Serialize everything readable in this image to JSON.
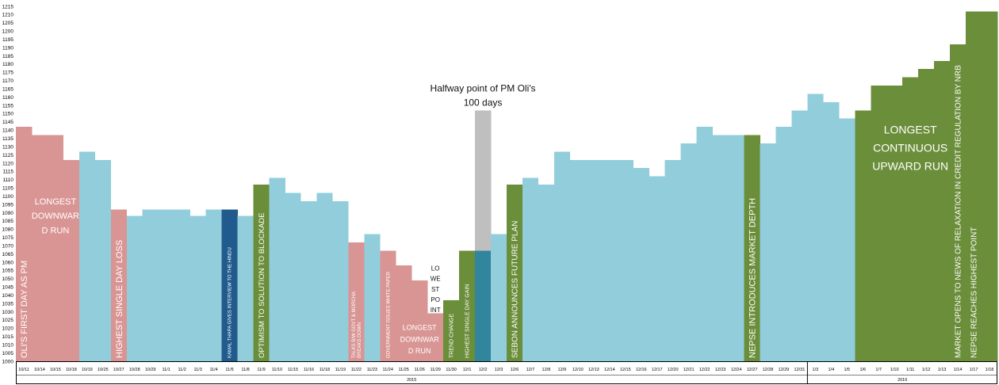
{
  "chart_data": {
    "type": "bar",
    "ylim": [
      1000,
      1215
    ],
    "y_ticks": [
      1000,
      1005,
      1010,
      1015,
      1020,
      1025,
      1030,
      1035,
      1040,
      1045,
      1050,
      1055,
      1060,
      1065,
      1070,
      1075,
      1080,
      1085,
      1090,
      1095,
      1100,
      1105,
      1110,
      1115,
      1120,
      1125,
      1130,
      1135,
      1140,
      1145,
      1150,
      1155,
      1160,
      1165,
      1170,
      1175,
      1180,
      1185,
      1190,
      1195,
      1200,
      1205,
      1210,
      1215
    ],
    "grid": false,
    "legend": "none",
    "categories": [
      "10/11",
      "10/14",
      "10/15",
      "10/18",
      "10/19",
      "10/25",
      "10/27",
      "10/28",
      "10/29",
      "11/1",
      "11/2",
      "11/3",
      "11/4",
      "11/5",
      "11/8",
      "11/9",
      "11/10",
      "11/15",
      "11/16",
      "11/18",
      "11/19",
      "11/22",
      "11/23",
      "11/24",
      "11/25",
      "11/26",
      "11/29",
      "11/30",
      "12/1",
      "12/2",
      "12/3",
      "12/6",
      "12/7",
      "12/8",
      "12/9",
      "12/10",
      "12/13",
      "12/14",
      "12/15",
      "12/16",
      "12/17",
      "12/20",
      "12/21",
      "12/22",
      "12/23",
      "12/24",
      "12/27",
      "12/28",
      "12/29",
      "12/31",
      "1/3",
      "1/4",
      "1/5",
      "1/6",
      "1/7",
      "1/10",
      "1/11",
      "1/12",
      "1/13",
      "1/14",
      "1/17",
      "1/18"
    ],
    "values": [
      1142,
      1137,
      1137,
      1122,
      1127,
      1122,
      1092,
      1088,
      1092,
      1092,
      1092,
      1088,
      1092,
      1092,
      1088,
      1107,
      1111,
      1102,
      1097,
      1102,
      1097,
      1072,
      1077,
      1067,
      1058,
      1049,
      1029,
      1037,
      1067,
      1067,
      1077,
      1107,
      1111,
      1107,
      1127,
      1122,
      1122,
      1122,
      1122,
      1117,
      1112,
      1122,
      1132,
      1142,
      1137,
      1137,
      1137,
      1132,
      1142,
      1152,
      1162,
      1157,
      1147,
      1152,
      1167,
      1167,
      1172,
      1177,
      1182,
      1192,
      1212,
      1212
    ],
    "halfway_bar": {
      "category": "12/2",
      "value": 1152
    },
    "bar_colors": [
      "#d99594",
      "#d99594",
      "#d99594",
      "#d99594",
      "#92cddc",
      "#92cddc",
      "#d99594",
      "#92cddc",
      "#92cddc",
      "#92cddc",
      "#92cddc",
      "#92cddc",
      "#92cddc",
      "#215a8c",
      "#92cddc",
      "#6b8e3a",
      "#92cddc",
      "#92cddc",
      "#92cddc",
      "#92cddc",
      "#92cddc",
      "#d99594",
      "#92cddc",
      "#d99594",
      "#d99594",
      "#d99594",
      "#d99594",
      "#6b8e3a",
      "#6b8e3a",
      "#31859c",
      "#92cddc",
      "#6b8e3a",
      "#92cddc",
      "#92cddc",
      "#92cddc",
      "#92cddc",
      "#92cddc",
      "#92cddc",
      "#92cddc",
      "#92cddc",
      "#92cddc",
      "#92cddc",
      "#92cddc",
      "#92cddc",
      "#92cddc",
      "#92cddc",
      "#6b8e3a",
      "#92cddc",
      "#92cddc",
      "#92cddc",
      "#92cddc",
      "#92cddc",
      "#92cddc",
      "#6b8e3a",
      "#6b8e3a",
      "#6b8e3a",
      "#6b8e3a",
      "#6b8e3a",
      "#6b8e3a",
      "#6b8e3a",
      "#6b8e3a",
      "#6b8e3a"
    ],
    "halfway_color": "#bfbfbf",
    "years": [
      {
        "label": "2015",
        "from": 0,
        "to": 49
      },
      {
        "label": "2016",
        "from": 50,
        "to": 61
      }
    ],
    "annotations": [
      {
        "text": "OLI'S FIRST DAY AS PM",
        "bar": 0,
        "rotate": true,
        "size": 11
      },
      {
        "text": "LONGEST DOWNWARD RUN",
        "lines": [
          "LONGEST",
          "DOWNWAR",
          "D RUN"
        ],
        "bar": 2,
        "value": 1095,
        "size": 11
      },
      {
        "text": "HIGHEST SINGLE DAY LOSS",
        "bar": 6,
        "rotate": true,
        "size": 11
      },
      {
        "text": "KAMAL THAPA GIVES INTERVIEW TO THE HINDU",
        "bar": 13,
        "rotate": true,
        "size": 6
      },
      {
        "text": "OPTIMISM TO SOLUTION TO BLOCKADE",
        "bar": 15,
        "rotate": true,
        "size": 9.5
      },
      {
        "text": "TALKS B/W GOVT & MORCHA BREAKS DOWN",
        "lines": [
          "TALKS B/W GOVT & MORCHA",
          "BREAKS DOWN"
        ],
        "bar": 21,
        "rotate": true,
        "size": 6
      },
      {
        "text": "GOVERNMENT ISSUES WHITE PAPER",
        "bar": 23,
        "rotate": true,
        "size": 6
      },
      {
        "text": "LONGEST DOWNWARD RUN",
        "lines": [
          "LONGEST",
          "DOWNWAR",
          "D RUN"
        ],
        "bar": 25,
        "value": 1019,
        "size": 9
      },
      {
        "text": "LOWEST POINT",
        "lines": [
          "LO",
          "WE",
          "ST",
          "PO",
          "INT"
        ],
        "bar": 26,
        "value": 1055,
        "size": 8,
        "dark": true
      },
      {
        "text": "TREND CHANGE",
        "bar": 27,
        "rotate": true,
        "size": 7
      },
      {
        "text": "HIGHEST SINGLE DAY GAIN",
        "bar": 28,
        "rotate": true,
        "size": 7
      },
      {
        "text": "SEBON ANNOUNCES FUTURE PLAN",
        "bar": 31,
        "rotate": true,
        "size": 10
      },
      {
        "text": "NEPSE INTRODUCES MARKET DEPTH",
        "bar": 46,
        "rotate": true,
        "size": 11
      },
      {
        "text": "LONGEST CONTINUOUS UPWARD RUN",
        "lines": [
          "LONGEST",
          "CONTINUOUS",
          "UPWARD RUN"
        ],
        "bar": 56,
        "value": 1138,
        "size": 14
      },
      {
        "text": "MARKET OPENS TO NEWS OF RELAXATION IN CREDIT REGULATION BY NRB",
        "bar": 59,
        "rotate": true,
        "size": 10
      },
      {
        "text": "NEPSE REACHES HIGHEST POINT",
        "bar": 60,
        "rotate": true,
        "size": 10
      }
    ],
    "halfway_label": [
      "Halfway point of PM Oli's",
      "100 days"
    ]
  }
}
